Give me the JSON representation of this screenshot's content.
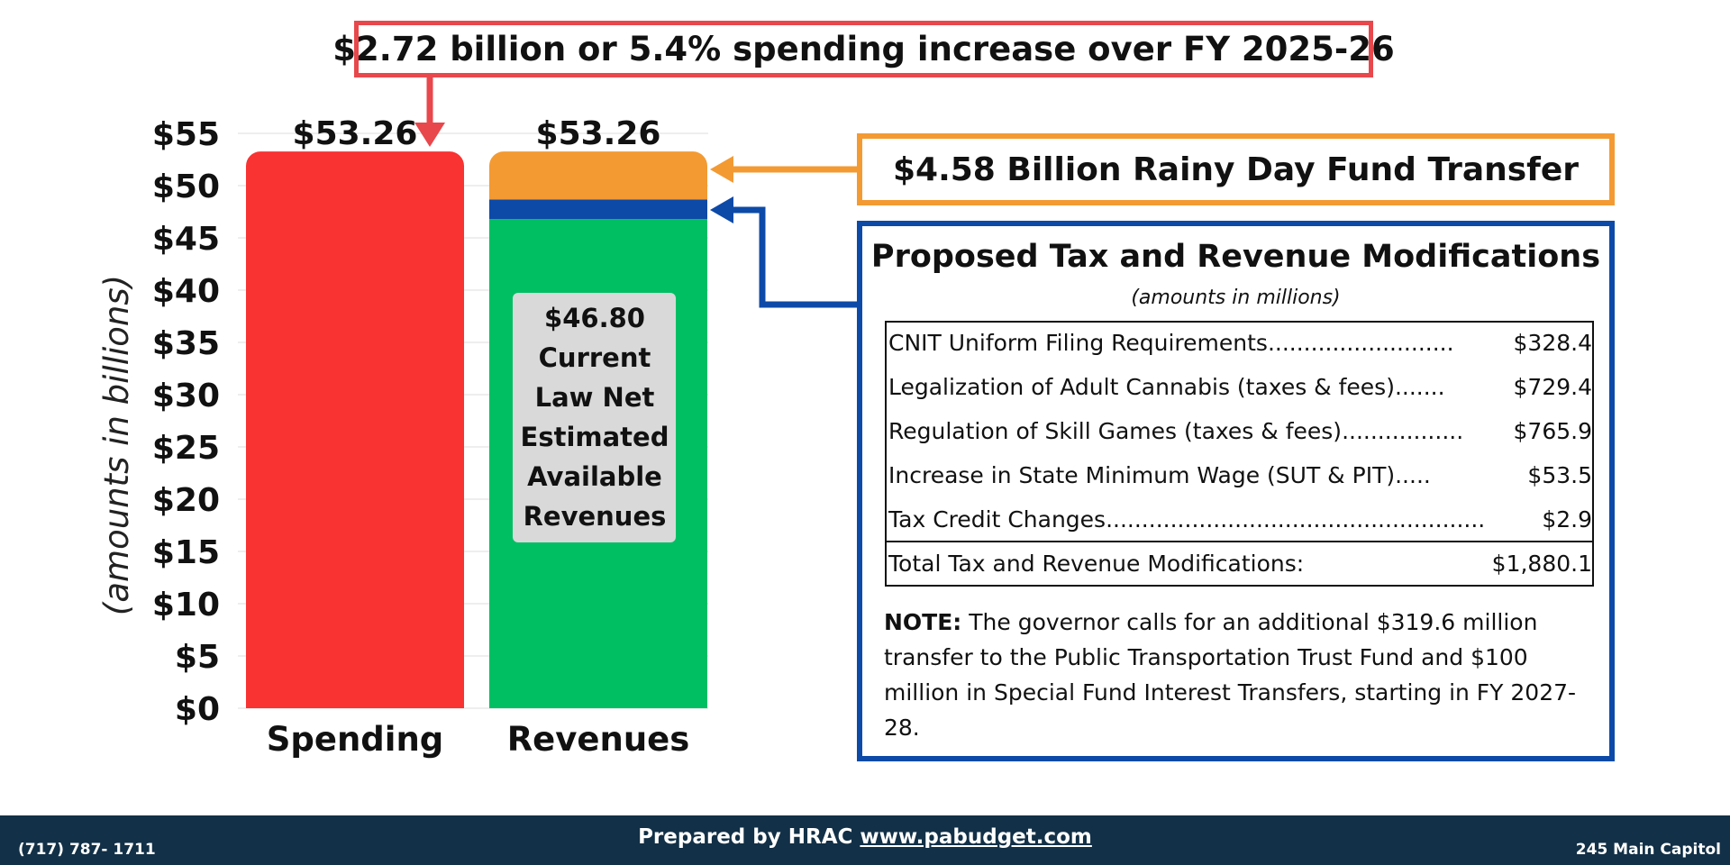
{
  "callouts": {
    "spending_increase": "$2.72 billion or 5.4% spending increase over FY 2025-26",
    "rainy_day": "$4.58 Billion Rainy Day Fund Transfer"
  },
  "chart_data": {
    "type": "bar",
    "stacked": true,
    "ylabel": "(amounts in billions)",
    "ylim": [
      0,
      55
    ],
    "yticks": [
      0,
      5,
      10,
      15,
      20,
      25,
      30,
      35,
      40,
      45,
      50,
      55
    ],
    "ytick_labels": [
      "$0",
      "$5",
      "$10",
      "$15",
      "$20",
      "$25",
      "$30",
      "$35",
      "$40",
      "$45",
      "$50",
      "$55"
    ],
    "categories": [
      "Spending",
      "Revenues"
    ],
    "totals": [
      53.26,
      53.26
    ],
    "total_labels": [
      "$53.26",
      "$53.26"
    ],
    "series": [
      {
        "name": "Spending",
        "color": "#f93232",
        "values": [
          53.26,
          0
        ]
      },
      {
        "name": "Current Law Net Estimated Available Revenues",
        "color": "#00bf63",
        "values": [
          0,
          46.8
        ]
      },
      {
        "name": "Proposed Tax and Revenue Modifications",
        "color": "#0d4aa8",
        "values": [
          0,
          1.88
        ]
      },
      {
        "name": "Rainy Day Fund Transfer",
        "color": "#f39a33",
        "values": [
          0,
          4.58
        ]
      }
    ],
    "inner_label": [
      "$46.80",
      "Current",
      "Law Net",
      "Estimated",
      "Available",
      "Revenues"
    ],
    "grid": true
  },
  "modifications": {
    "title": "Proposed Tax and Revenue Modifications",
    "subtitle": "(amounts in millions)",
    "rows": [
      {
        "label": "CNIT Uniform Filing Requirements",
        "dots": "..........................",
        "value": "$328.4"
      },
      {
        "label": "Legalization of Adult Cannabis (taxes & fees)",
        "dots": ".......",
        "value": "$729.4"
      },
      {
        "label": "Regulation of Skill Games (taxes & fees)",
        "dots": ".................",
        "value": "$765.9"
      },
      {
        "label": "Increase in State Minimum Wage (SUT & PIT)",
        "dots": ".....",
        "value": "$53.5"
      },
      {
        "label": "Tax Credit Changes",
        "dots": ".................................................................",
        "value": "$2.9"
      }
    ],
    "total_label": "Total Tax and Revenue Modifications:",
    "total_value": "$1,880.1",
    "note_label": "NOTE:",
    "note_text": "The governor calls for an additional $319.6 million transfer to the Public Transportation Trust Fund and $100 million in Special Fund Interest Transfers, starting in FY 2027-28."
  },
  "footer": {
    "phone": "(717) 787- 1711",
    "prepared_by": "Prepared by HRAC",
    "website": "www.pabudget.com",
    "address": "245 Main Capitol"
  },
  "colors": {
    "red_callout": "#e8474c",
    "orange": "#f39a33",
    "blue": "#0d4aa8",
    "footer_bg": "#123047"
  }
}
